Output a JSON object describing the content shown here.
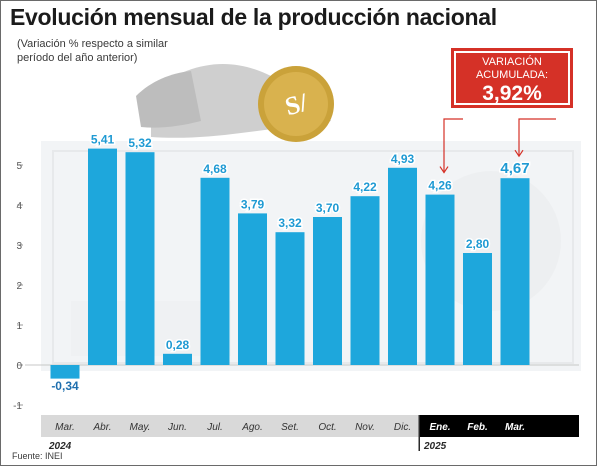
{
  "title": "Evolución mensual de la producción nacional",
  "subtitle": "(Variación % respecto a similar período del año anterior)",
  "source": "Fuente: INEI",
  "badge": {
    "label": "VARIACIÓN ACUMULADA:",
    "value": "3,92%"
  },
  "colors": {
    "bar": "#1ea7dc",
    "label": "#1f9ad3",
    "negative_label": "#1f6fae",
    "highlight_band": "#000000",
    "badge": "#d53127",
    "arrow": "#d53127"
  },
  "background_illustration": [
    "hand-with-coin-icon",
    "banknote-watermark-icon"
  ],
  "chart_data": {
    "type": "bar",
    "title": "Evolución mensual de la producción nacional",
    "subtitle": "(Variación % respecto a similar período del año anterior)",
    "categories": [
      "Mar.",
      "Abr.",
      "May.",
      "Jun.",
      "Jul.",
      "Ago.",
      "Set.",
      "Oct.",
      "Nov.",
      "Dic.",
      "Ene.",
      "Feb.",
      "Mar."
    ],
    "values": [
      -0.34,
      5.41,
      5.32,
      0.28,
      4.68,
      3.79,
      3.32,
      3.7,
      4.22,
      4.93,
      4.26,
      2.8,
      4.67
    ],
    "value_labels": [
      "-0,34",
      "5,41",
      "5,32",
      "0,28",
      "4,68",
      "3,79",
      "3,32",
      "3,70",
      "4,22",
      "4,93",
      "4,26",
      "2,80",
      "4,67"
    ],
    "yticks": [
      5,
      4,
      3,
      2,
      1,
      0,
      -1
    ],
    "ytick_labels": [
      "5",
      "4",
      "3",
      "2",
      "1",
      "0",
      "-1"
    ],
    "ylim": [
      -1,
      5.4
    ],
    "grid": false,
    "years": [
      {
        "label": "2024",
        "start_index": 0
      },
      {
        "label": "2025",
        "start_index": 10
      }
    ],
    "highlighted": [
      10,
      11,
      12
    ],
    "arrow_targets": [
      10,
      12
    ]
  }
}
